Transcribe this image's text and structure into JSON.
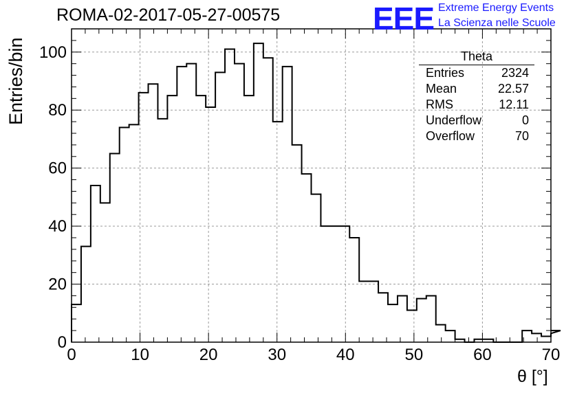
{
  "title": "ROMA-02-2017-05-27-00575",
  "logo": {
    "letters": "EEE",
    "line1": "Extreme Energy Events",
    "line2": "La Scienza nelle Scuole",
    "color": "#1a1aff"
  },
  "stats": {
    "name": "Theta",
    "rows": [
      {
        "label": "Entries",
        "value": "2324"
      },
      {
        "label": "Mean",
        "value": "22.57"
      },
      {
        "label": "RMS",
        "value": "12.11"
      },
      {
        "label": "Underflow",
        "value": "0"
      },
      {
        "label": "Overflow",
        "value": "70"
      }
    ]
  },
  "chart_data": {
    "type": "bar",
    "histogram": true,
    "title": "ROMA-02-2017-05-27-00575",
    "xlabel": "θ [°]",
    "ylabel": "Entries/bin",
    "xlim": [
      0,
      70
    ],
    "ylim": [
      0,
      108
    ],
    "grid": true,
    "bin_width": 1.4,
    "x_ticks": [
      0,
      10,
      20,
      30,
      40,
      50,
      60,
      70
    ],
    "y_ticks": [
      0,
      20,
      40,
      60,
      80,
      100
    ],
    "values": [
      13,
      33,
      54,
      48,
      65,
      74,
      75,
      86,
      89,
      77,
      85,
      95,
      96,
      85,
      81,
      93,
      101,
      96,
      85,
      103,
      98,
      76,
      95,
      68,
      58,
      51,
      40,
      40,
      40,
      36,
      21,
      21,
      17,
      13,
      16,
      11,
      15,
      16,
      6,
      4,
      1,
      0,
      1,
      1,
      0,
      0,
      0,
      4,
      3,
      2,
      3,
      4
    ]
  }
}
